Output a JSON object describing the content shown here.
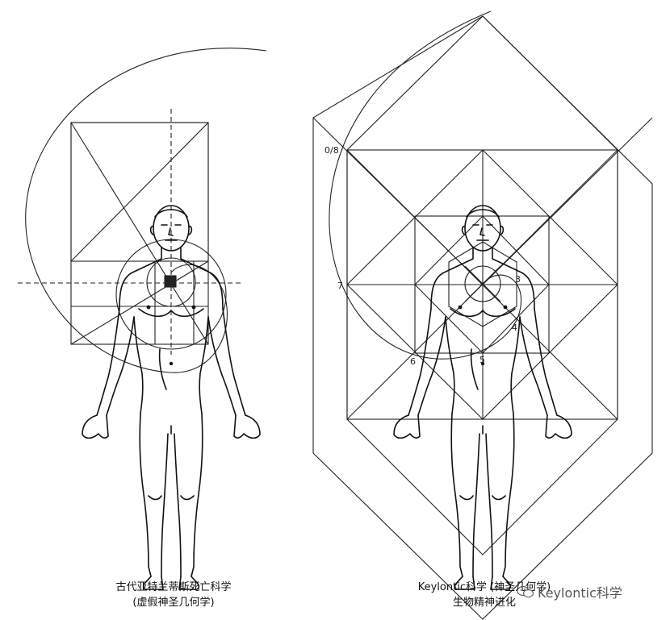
{
  "left_figure": {
    "caption_line1": "古代亚特兰蒂斯死亡科学",
    "caption_line2": "(虚假神圣几何学)"
  },
  "right_figure": {
    "caption_line1": "Keylontic科学 (神圣几何学)",
    "caption_line2": "生物精神进化",
    "point_labels": [
      "0/8",
      "7",
      "6",
      "5",
      "4",
      "3"
    ]
  },
  "watermark": {
    "text": "Keylontic科学",
    "icon": "wechat-icon"
  }
}
